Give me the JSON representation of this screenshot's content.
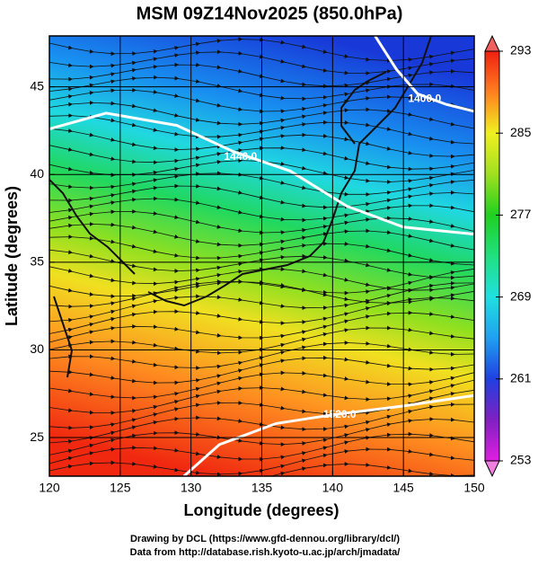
{
  "chart_data": {
    "type": "map",
    "title": "MSM 09Z14Nov2025 (850.0hPa)",
    "xlabel": "Longitude (degrees)",
    "ylabel": "Latitude  (degrees)",
    "xlim": [
      120,
      150
    ],
    "ylim": [
      22.8,
      47.9
    ],
    "xticks": [
      120,
      125,
      130,
      135,
      140,
      145,
      150
    ],
    "yticks": [
      25,
      30,
      35,
      40,
      45
    ],
    "grid": true,
    "colorbar": {
      "lim": [
        253,
        293
      ],
      "ticks": [
        253,
        261,
        269,
        277,
        285,
        293
      ]
    },
    "contours": [
      {
        "value": 1400,
        "label": "1400.0"
      },
      {
        "value": 1440,
        "label": "1440.0"
      },
      {
        "value": 1520,
        "label": "1520.0"
      }
    ],
    "footer": [
      "Drawing by DCL (https://www.gfd-dennou.org/library/dcl/)",
      "Data from http://database.rish.kyoto-u.ac.jp/arch/jmadata/"
    ]
  }
}
